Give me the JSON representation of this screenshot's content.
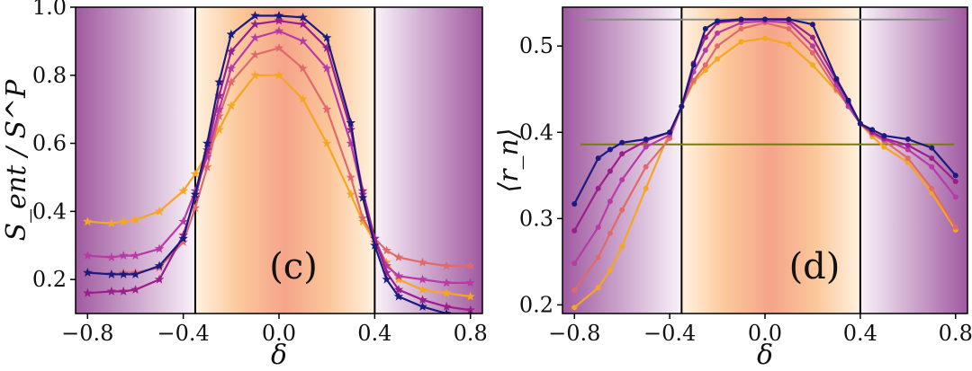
{
  "chart_data": [
    {
      "panel": "(c)",
      "type": "line",
      "xlabel": "δ",
      "ylabel": "S_ent / S^P",
      "xlim": [
        -0.85,
        0.85
      ],
      "ylim": [
        0.1,
        1.0
      ],
      "xticks": [
        "−0.8",
        "−0.4",
        "0.0",
        "0.4",
        "0.8"
      ],
      "yticks": [
        "0.2",
        "0.4",
        "0.6",
        "0.8",
        "1.0"
      ],
      "marker": "star",
      "vlines": [
        -0.35,
        0.4
      ],
      "x": [
        -0.8,
        -0.7,
        -0.65,
        -0.6,
        -0.5,
        -0.4,
        -0.35,
        -0.3,
        -0.25,
        -0.2,
        -0.1,
        0.0,
        0.1,
        0.2,
        0.3,
        0.35,
        0.4,
        0.45,
        0.5,
        0.6,
        0.7,
        0.8
      ],
      "series": [
        {
          "color": "#f5a623",
          "values": [
            0.37,
            0.365,
            0.37,
            0.375,
            0.4,
            0.46,
            0.51,
            0.57,
            0.64,
            0.71,
            0.8,
            0.8,
            0.73,
            0.6,
            0.45,
            0.37,
            0.31,
            0.25,
            0.2,
            0.17,
            0.16,
            0.15
          ]
        },
        {
          "color": "#e06a6a",
          "values": [
            0.22,
            0.215,
            0.22,
            0.22,
            0.235,
            0.31,
            0.41,
            0.53,
            0.68,
            0.78,
            0.86,
            0.88,
            0.82,
            0.7,
            0.5,
            0.38,
            0.32,
            0.285,
            0.265,
            0.25,
            0.24,
            0.24
          ]
        },
        {
          "color": "#b83aa6",
          "values": [
            0.27,
            0.265,
            0.27,
            0.27,
            0.29,
            0.37,
            0.46,
            0.56,
            0.7,
            0.82,
            0.91,
            0.93,
            0.9,
            0.82,
            0.6,
            0.45,
            0.32,
            0.24,
            0.21,
            0.2,
            0.19,
            0.19
          ]
        },
        {
          "color": "#9b1e8c",
          "values": [
            0.16,
            0.165,
            0.165,
            0.17,
            0.2,
            0.33,
            0.44,
            0.58,
            0.74,
            0.87,
            0.95,
            0.96,
            0.95,
            0.88,
            0.64,
            0.46,
            0.32,
            0.22,
            0.17,
            0.14,
            0.12,
            0.11
          ]
        },
        {
          "color": "#1a1a80",
          "values": [
            0.22,
            0.215,
            0.215,
            0.215,
            0.24,
            0.32,
            0.45,
            0.6,
            0.78,
            0.92,
            0.975,
            0.975,
            0.97,
            0.91,
            0.66,
            0.44,
            0.3,
            0.2,
            0.15,
            0.12,
            0.1,
            0.095
          ]
        }
      ]
    },
    {
      "panel": "(d)",
      "type": "line",
      "xlabel": "δ",
      "ylabel": "⟨r_n⟩",
      "xlim": [
        -0.85,
        0.85
      ],
      "ylim": [
        0.19,
        0.545
      ],
      "xticks": [
        "−0.8",
        "−0.4",
        "0.0",
        "0.4",
        "0.8"
      ],
      "yticks": [
        "0.2",
        "0.3",
        "0.4",
        "0.5"
      ],
      "marker": "dot",
      "vlines": [
        -0.35,
        0.4
      ],
      "hlines": [
        {
          "y": 0.5307,
          "color": "#8a8a8a"
        },
        {
          "y": 0.386,
          "color": "#7a7a10"
        }
      ],
      "x": [
        -0.8,
        -0.7,
        -0.65,
        -0.6,
        -0.5,
        -0.4,
        -0.35,
        -0.3,
        -0.25,
        -0.2,
        -0.1,
        0.0,
        0.1,
        0.2,
        0.3,
        0.35,
        0.4,
        0.45,
        0.5,
        0.6,
        0.7,
        0.8
      ],
      "series": [
        {
          "color": "#f5a623",
          "values": [
            0.197,
            0.22,
            0.24,
            0.268,
            0.335,
            0.4,
            0.43,
            0.458,
            0.472,
            0.485,
            0.505,
            0.509,
            0.502,
            0.478,
            0.448,
            0.432,
            0.41,
            0.395,
            0.383,
            0.365,
            0.33,
            0.287
          ]
        },
        {
          "color": "#e06a6a",
          "values": [
            0.217,
            0.255,
            0.283,
            0.31,
            0.36,
            0.393,
            0.43,
            0.46,
            0.478,
            0.5,
            0.52,
            0.527,
            0.52,
            0.492,
            0.45,
            0.43,
            0.41,
            0.398,
            0.39,
            0.37,
            0.335,
            0.29
          ]
        },
        {
          "color": "#b83aa6",
          "values": [
            0.248,
            0.29,
            0.32,
            0.345,
            0.383,
            0.397,
            0.43,
            0.47,
            0.495,
            0.515,
            0.527,
            0.529,
            0.527,
            0.5,
            0.455,
            0.43,
            0.41,
            0.4,
            0.392,
            0.38,
            0.36,
            0.325
          ]
        },
        {
          "color": "#9b1e8c",
          "values": [
            0.286,
            0.335,
            0.355,
            0.375,
            0.39,
            0.4,
            0.43,
            0.48,
            0.51,
            0.527,
            0.53,
            0.531,
            0.53,
            0.51,
            0.46,
            0.435,
            0.41,
            0.4,
            0.393,
            0.385,
            0.37,
            0.343
          ]
        },
        {
          "color": "#1a1a80",
          "values": [
            0.317,
            0.37,
            0.38,
            0.388,
            0.392,
            0.4,
            0.43,
            0.478,
            0.52,
            0.529,
            0.531,
            0.531,
            0.531,
            0.525,
            0.462,
            0.437,
            0.41,
            0.403,
            0.396,
            0.392,
            0.382,
            0.35
          ]
        }
      ]
    }
  ]
}
